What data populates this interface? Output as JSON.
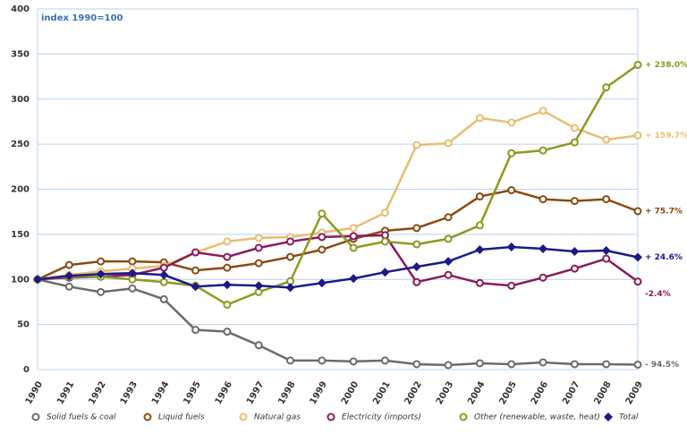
{
  "chart_data": {
    "type": "line",
    "annotation": "index 1990=100",
    "x": [
      "1990",
      "1991",
      "1992",
      "1993",
      "1994",
      "1995",
      "1996",
      "1997",
      "1998",
      "1999",
      "2000",
      "2001",
      "2002",
      "2003",
      "2004",
      "2005",
      "2006",
      "2007",
      "2008",
      "2009"
    ],
    "ylim": [
      0,
      400
    ],
    "yticks": [
      0,
      50,
      100,
      150,
      200,
      250,
      300,
      350,
      400
    ],
    "grid": true,
    "series": [
      {
        "name": "Solid fuels & coal",
        "color": "#6b6b6b",
        "marker": "circle",
        "end_label": "- 94.5%",
        "values": [
          100,
          92,
          86,
          90,
          78,
          44,
          42,
          27,
          10,
          10,
          9,
          10,
          6,
          5,
          7,
          6,
          8,
          6,
          6,
          5.5
        ]
      },
      {
        "name": "Liquid fuels",
        "color": "#8b4a12",
        "marker": "circle",
        "end_label": "+ 75.7%",
        "values": [
          100,
          116,
          120,
          120,
          119,
          110,
          113,
          118,
          125,
          133,
          145,
          154,
          157,
          169,
          192,
          199,
          189,
          187,
          189,
          175.7
        ]
      },
      {
        "name": "Natural gas",
        "color": "#e8bd72",
        "marker": "circle",
        "end_label": "+ 159.7%",
        "values": [
          100,
          105,
          109,
          112,
          115,
          130,
          142,
          146,
          147,
          152,
          157,
          174,
          249,
          251,
          279,
          274,
          287,
          268,
          255,
          259.7
        ]
      },
      {
        "name": "Electricity (imports)",
        "color": "#8b1a5a",
        "marker": "circle",
        "end_label": "-2.4%",
        "values": [
          100,
          102,
          103,
          105,
          113,
          130,
          125,
          135,
          142,
          147,
          148,
          149,
          97,
          105,
          96,
          93,
          102,
          112,
          123,
          97.6
        ]
      },
      {
        "name": "Other (renewable, waste, heat)",
        "color": "#8a9a1e",
        "marker": "circle",
        "end_label": "+ 238.0%",
        "values": [
          100,
          103,
          103,
          100,
          97,
          93,
          72,
          86,
          98,
          173,
          135,
          142,
          139,
          145,
          160,
          240,
          243,
          252,
          313,
          338
        ]
      },
      {
        "name": "Total",
        "color": "#1c1a8a",
        "marker": "diamond",
        "end_label": "+ 24.6%",
        "values": [
          100,
          104,
          106,
          107,
          105,
          92,
          94,
          93,
          91,
          96,
          101,
          108,
          114,
          120,
          133,
          136,
          134,
          131,
          132,
          124.6
        ]
      }
    ]
  }
}
